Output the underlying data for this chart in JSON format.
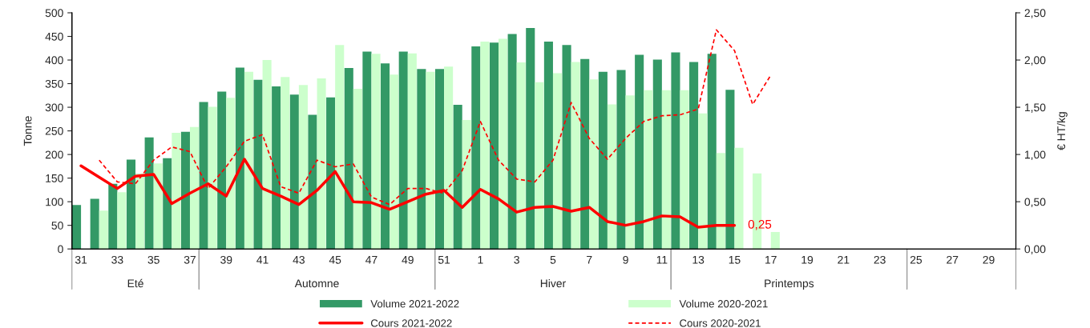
{
  "chart_data": {
    "type": "bar",
    "ylabel": "Tonne",
    "y2label": "€ HT/kg",
    "categories": [
      "31",
      null,
      "33",
      null,
      "35",
      null,
      "37",
      null,
      "39",
      null,
      "41",
      null,
      "43",
      null,
      "45",
      null,
      "47",
      null,
      "49",
      null,
      "51",
      null,
      "1",
      null,
      "3",
      null,
      "5",
      null,
      "7",
      null,
      "9",
      null,
      "11",
      null,
      "13",
      null,
      "15",
      null,
      "17",
      null,
      "19",
      null,
      "21",
      null,
      "23",
      null,
      "25",
      null,
      "27",
      null,
      "29",
      null
    ],
    "series": [
      {
        "name": "Volume 2021-2022",
        "color": "#339966",
        "values": [
          93,
          106,
          138,
          189,
          236,
          192,
          248,
          311,
          333,
          384,
          358,
          344,
          327,
          284,
          321,
          383,
          418,
          393,
          418,
          381,
          381,
          305,
          429,
          437,
          455,
          468,
          439,
          432,
          402,
          375,
          379,
          411,
          401,
          416,
          396,
          413,
          337,
          null,
          null,
          null,
          null,
          null,
          null,
          null,
          null,
          null,
          null,
          null,
          null,
          null,
          null,
          null
        ]
      },
      {
        "name": "Volume 2020-2021",
        "color": "#ccffcc",
        "values": [
          null,
          81,
          120,
          160,
          181,
          246,
          258,
          301,
          320,
          375,
          400,
          364,
          347,
          361,
          432,
          339,
          413,
          369,
          414,
          375,
          386,
          273,
          439,
          445,
          395,
          353,
          372,
          396,
          359,
          306,
          325,
          336,
          336,
          336,
          287,
          203,
          214,
          160,
          36,
          null,
          null,
          null,
          null,
          null,
          null,
          null,
          null,
          null,
          null,
          null,
          null,
          null
        ]
      },
      {
        "name": "Cours 2021-2022",
        "type": "line",
        "axis": "y2",
        "color": "#ff0000",
        "line_style": "solid",
        "values": [
          0.88,
          0.76,
          0.64,
          0.77,
          0.79,
          0.48,
          0.59,
          0.69,
          0.56,
          0.95,
          0.64,
          0.56,
          0.47,
          0.62,
          0.82,
          0.5,
          0.49,
          0.42,
          0.5,
          0.58,
          0.62,
          0.44,
          0.63,
          0.53,
          0.39,
          0.44,
          0.45,
          0.4,
          0.44,
          0.29,
          0.25,
          0.29,
          0.35,
          0.34,
          0.23,
          0.25,
          0.25,
          null,
          null,
          null,
          null,
          null,
          null,
          null,
          null,
          null,
          null,
          null,
          null,
          null,
          null,
          null
        ]
      },
      {
        "name": "Cours 2020-2021",
        "type": "line",
        "axis": "y2",
        "color": "#ff0000",
        "line_style": "dashed",
        "values": [
          null,
          0.94,
          0.71,
          0.69,
          0.94,
          1.08,
          1.03,
          0.64,
          0.87,
          1.14,
          1.21,
          0.66,
          0.59,
          0.94,
          0.87,
          0.9,
          0.55,
          0.47,
          0.64,
          0.64,
          0.59,
          0.83,
          1.35,
          0.94,
          0.74,
          0.71,
          0.94,
          1.55,
          1.17,
          0.95,
          1.17,
          1.35,
          1.41,
          1.42,
          1.48,
          2.32,
          2.1,
          1.53,
          1.84,
          null,
          null,
          null,
          null,
          null,
          null,
          null,
          null,
          null,
          null,
          null,
          null,
          null
        ]
      }
    ],
    "ylim": [
      0,
      500
    ],
    "yticks": [
      0,
      50,
      100,
      150,
      200,
      250,
      300,
      350,
      400,
      450,
      500
    ],
    "y2lim": [
      0,
      2.5
    ],
    "y2ticks": [
      {
        "value": 0,
        "label": "0,00"
      },
      {
        "value": 0.5,
        "label": "0,50"
      },
      {
        "value": 1,
        "label": "1,00"
      },
      {
        "value": 1.5,
        "label": "1,50"
      },
      {
        "value": 2,
        "label": "2,00"
      },
      {
        "value": 2.5,
        "label": "2,50"
      }
    ],
    "annotations": [
      "Eté",
      "Automne",
      "Hiver",
      "Printemps",
      {
        "text": "0,25",
        "x": "15",
        "y": 0.25
      }
    ],
    "legend": "bottom",
    "grid": false
  }
}
